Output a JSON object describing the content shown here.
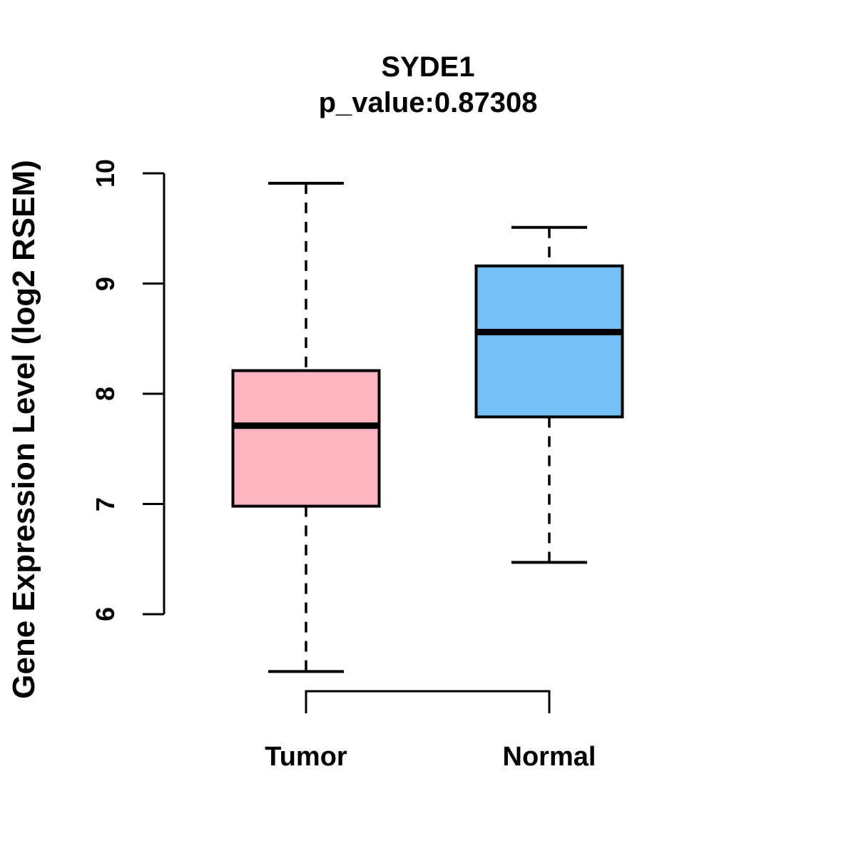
{
  "title": "SYDE1",
  "subtitle": "p_value:0.87308",
  "ylabel": "Gene Expression Level (log2 RSEM)",
  "chart_data": {
    "type": "boxplot",
    "categories": [
      "Tumor",
      "Normal"
    ],
    "series": [
      {
        "name": "Tumor",
        "color": "#FFB6C1",
        "whisker_low": 5.48,
        "q1": 6.98,
        "median": 7.71,
        "q3": 8.21,
        "whisker_high": 9.91
      },
      {
        "name": "Normal",
        "color": "#74C0F6",
        "whisker_low": 6.47,
        "q1": 7.79,
        "median": 8.56,
        "q3": 9.16,
        "whisker_high": 9.51
      }
    ],
    "yticks": [
      10,
      9,
      8,
      7,
      6
    ],
    "ylim": [
      5.3,
      10.1
    ],
    "ylabel": "Gene Expression Level (log2 RSEM)",
    "grid": "off",
    "legend": "none",
    "axis_color": "#000000",
    "median_color": "#000000",
    "box_border_color": "#000000"
  }
}
